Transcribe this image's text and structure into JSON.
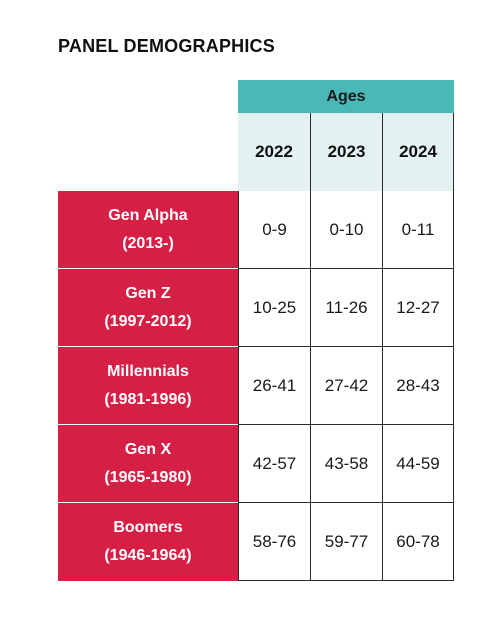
{
  "title": "PANEL DEMOGRAPHICS",
  "header": {
    "group_label": "Ages",
    "years": [
      "2022",
      "2023",
      "2024"
    ]
  },
  "colors": {
    "header_teal": "#4bb8b8",
    "year_row_bg": "#e3f1f0",
    "generation_red": "#d61f45"
  },
  "rows": [
    {
      "name": "Gen Alpha",
      "range": "(2013-)",
      "ages": [
        "0-9",
        "0-10",
        "0-11"
      ]
    },
    {
      "name": "Gen Z",
      "range": "(1997-2012)",
      "ages": [
        "10-25",
        "11-26",
        "12-27"
      ]
    },
    {
      "name": "Millennials",
      "range": "(1981-1996)",
      "ages": [
        "26-41",
        "27-42",
        "28-43"
      ]
    },
    {
      "name": "Gen X",
      "range": "(1965-1980)",
      "ages": [
        "42-57",
        "43-58",
        "44-59"
      ]
    },
    {
      "name": "Boomers",
      "range": "(1946-1964)",
      "ages": [
        "58-76",
        "59-77",
        "60-78"
      ]
    }
  ]
}
